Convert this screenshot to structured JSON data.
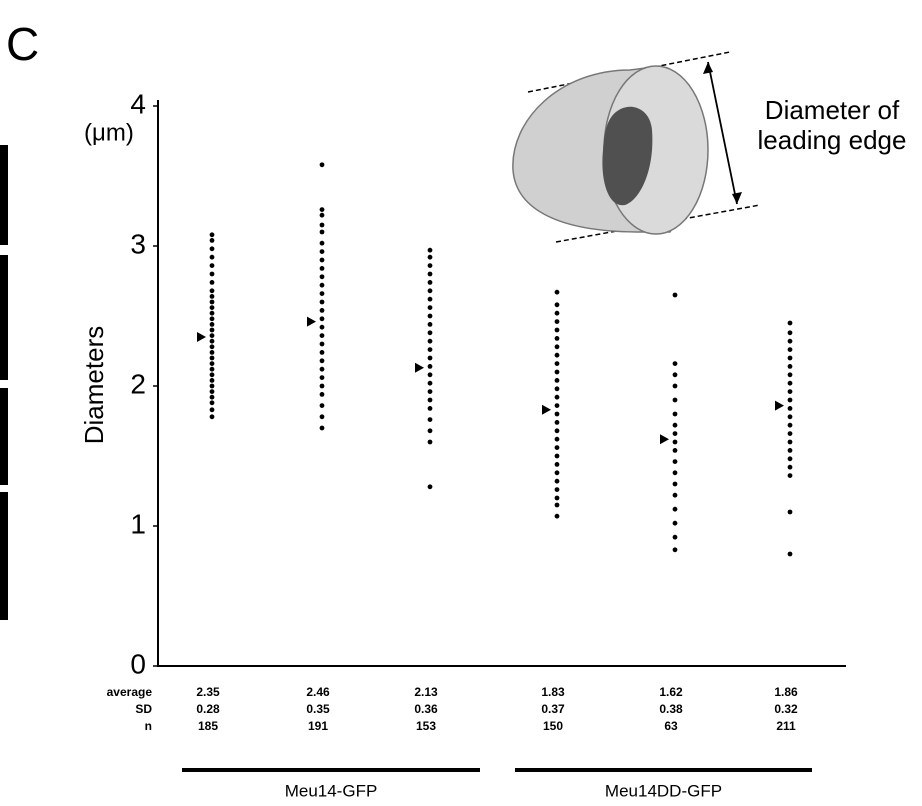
{
  "chart_data": {
    "type": "strip",
    "panel_label": "C",
    "y_unit": "(μm)",
    "ylabel": "Diameters",
    "ylim": [
      0,
      4
    ],
    "yticks": [
      0,
      1,
      2,
      3,
      4
    ],
    "color": "#000000",
    "annotation": [
      "Diameter of",
      "leading edge"
    ],
    "row_labels": [
      "average",
      "SD",
      "n"
    ],
    "groups": [
      {
        "name": "Meu14-GFP",
        "series": [
          {
            "values": [
              1.78,
              1.83,
              1.88,
              1.92,
              1.96,
              2.0,
              2.04,
              2.08,
              2.12,
              2.16,
              2.2,
              2.24,
              2.28,
              2.32,
              2.36,
              2.4,
              2.44,
              2.48,
              2.52,
              2.56,
              2.6,
              2.64,
              2.68,
              2.74,
              2.8,
              2.86,
              2.92,
              2.98,
              3.04,
              3.08
            ],
            "average": 2.35,
            "sd": 0.28,
            "n": 185
          },
          {
            "values": [
              1.7,
              1.78,
              1.86,
              1.94,
              2.0,
              2.06,
              2.12,
              2.18,
              2.24,
              2.3,
              2.36,
              2.42,
              2.48,
              2.54,
              2.6,
              2.66,
              2.72,
              2.78,
              2.84,
              2.9,
              2.96,
              3.02,
              3.1,
              3.15,
              3.22,
              3.26,
              3.58
            ],
            "average": 2.46,
            "sd": 0.35,
            "n": 191
          },
          {
            "values": [
              1.28,
              1.6,
              1.68,
              1.76,
              1.84,
              1.9,
              1.96,
              2.02,
              2.08,
              2.14,
              2.2,
              2.26,
              2.32,
              2.38,
              2.44,
              2.5,
              2.56,
              2.62,
              2.68,
              2.74,
              2.8,
              2.86,
              2.92,
              2.97
            ],
            "average": 2.13,
            "sd": 0.36,
            "n": 153
          }
        ]
      },
      {
        "name": "Meu14DD-GFP",
        "series": [
          {
            "values": [
              1.07,
              1.15,
              1.2,
              1.26,
              1.32,
              1.38,
              1.44,
              1.5,
              1.56,
              1.62,
              1.68,
              1.74,
              1.8,
              1.86,
              1.92,
              1.98,
              2.04,
              2.1,
              2.16,
              2.22,
              2.28,
              2.34,
              2.4,
              2.46,
              2.52,
              2.58,
              2.67
            ],
            "average": 1.83,
            "sd": 0.37,
            "n": 150
          },
          {
            "values": [
              0.83,
              0.92,
              1.02,
              1.12,
              1.22,
              1.3,
              1.38,
              1.46,
              1.54,
              1.6,
              1.66,
              1.72,
              1.8,
              1.9,
              2.0,
              2.08,
              2.16,
              2.65
            ],
            "average": 1.62,
            "sd": 0.38,
            "n": 63
          },
          {
            "values": [
              0.8,
              1.1,
              1.36,
              1.42,
              1.48,
              1.54,
              1.6,
              1.66,
              1.72,
              1.78,
              1.84,
              1.9,
              1.96,
              2.02,
              2.08,
              2.14,
              2.2,
              2.26,
              2.32,
              2.38,
              2.45
            ],
            "average": 1.86,
            "sd": 0.32,
            "n": 211
          }
        ]
      }
    ]
  }
}
